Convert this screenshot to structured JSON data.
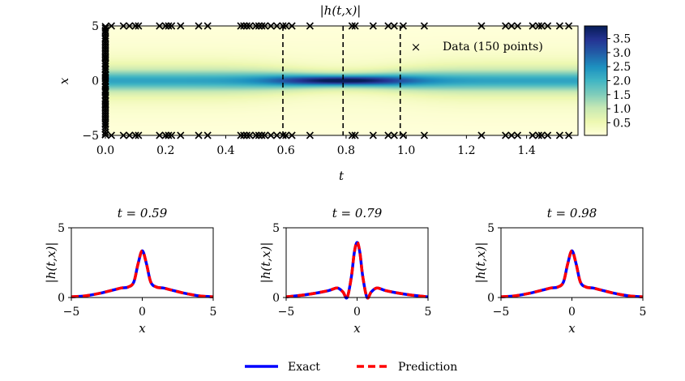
{
  "chart_data": [
    {
      "type": "heatmap",
      "title": "|h(t,x)|",
      "xlabel": "t",
      "ylabel": "x",
      "xlim": [
        0,
        1.5708
      ],
      "ylim": [
        -5,
        5
      ],
      "xticks": [
        "0.0",
        "0.2",
        "0.4",
        "0.6",
        "0.8",
        "1.0",
        "1.2",
        "1.4"
      ],
      "yticks": [
        "−5",
        "0",
        "5"
      ],
      "colormap": "YlGnBu",
      "colorbar": {
        "range": [
          0.05,
          3.95
        ],
        "ticks": [
          "0.5",
          "1.0",
          "1.5",
          "2.0",
          "2.5",
          "3.0",
          "3.5"
        ]
      },
      "vertical_lines_t": [
        0.59,
        0.79,
        0.98
      ],
      "legend": {
        "label": "Data (150 points)",
        "placement": "upper-right",
        "marker": "x"
      },
      "data_points": {
        "boundary_t": [
          0.02,
          0.06,
          0.08,
          0.1,
          0.11,
          0.18,
          0.2,
          0.21,
          0.22,
          0.25,
          0.31,
          0.34,
          0.45,
          0.46,
          0.47,
          0.48,
          0.5,
          0.51,
          0.52,
          0.53,
          0.55,
          0.57,
          0.59,
          0.6,
          0.62,
          0.68,
          0.82,
          0.83,
          0.89,
          0.94,
          0.96,
          0.99,
          1.06,
          1.25,
          1.33,
          1.35,
          1.37,
          1.42,
          1.44,
          1.45,
          1.47,
          1.51,
          1.54
        ],
        "initial_x": [
          -4.9,
          -4.7,
          -4.4,
          -4.2,
          -4.0,
          -3.7,
          -3.5,
          -3.3,
          -3.1,
          -2.9,
          -2.7,
          -2.5,
          -2.3,
          -2.1,
          -1.9,
          -1.8,
          -1.6,
          -1.4,
          -1.3,
          -1.1,
          -0.9,
          -0.8,
          -0.6,
          -0.5,
          -0.3,
          -0.1,
          0.0,
          0.2,
          0.3,
          0.5,
          0.6,
          0.8,
          1.0,
          1.1,
          1.3,
          1.5,
          1.6,
          1.8,
          2.0,
          2.2,
          2.4,
          2.6,
          2.8,
          3.0,
          3.2,
          3.4,
          3.6,
          3.9,
          4.1,
          4.3,
          4.6,
          4.8,
          4.95,
          -4.95,
          4.5,
          -3.9,
          3.8,
          -2.2,
          2.1,
          -1.0
        ]
      }
    },
    {
      "type": "line",
      "title": "t = 0.59",
      "xlabel": "x",
      "ylabel": "|h(t,x)|",
      "xlim": [
        -5,
        5
      ],
      "ylim": [
        0,
        5
      ],
      "xticks": [
        "−5",
        "0",
        "5"
      ],
      "yticks": [
        "0",
        "5"
      ],
      "x": [
        -5,
        -4,
        -3,
        -2,
        -1.5,
        -1,
        -0.6,
        -0.3,
        0,
        0.3,
        0.6,
        1,
        1.5,
        2,
        3,
        4,
        5
      ],
      "series": [
        {
          "name": "Exact",
          "color": "#0000ff",
          "values": [
            0.05,
            0.12,
            0.3,
            0.55,
            0.68,
            0.75,
            1.1,
            2.4,
            3.35,
            2.4,
            1.1,
            0.75,
            0.68,
            0.55,
            0.3,
            0.12,
            0.05
          ]
        },
        {
          "name": "Prediction",
          "color": "#ff0000",
          "values": [
            0.05,
            0.12,
            0.3,
            0.55,
            0.68,
            0.75,
            1.1,
            2.4,
            3.35,
            2.4,
            1.1,
            0.75,
            0.68,
            0.55,
            0.3,
            0.12,
            0.05
          ]
        }
      ]
    },
    {
      "type": "line",
      "title": "t = 0.79",
      "xlabel": "x",
      "ylabel": "|h(t,x)|",
      "xlim": [
        -5,
        5
      ],
      "ylim": [
        0,
        5
      ],
      "xticks": [
        "−5",
        "0",
        "5"
      ],
      "yticks": [
        "0",
        "5"
      ],
      "x": [
        -5,
        -4,
        -3,
        -2,
        -1.4,
        -1,
        -0.7,
        -0.4,
        -0.2,
        0,
        0.2,
        0.4,
        0.7,
        1,
        1.4,
        2,
        3,
        4,
        5
      ],
      "series": [
        {
          "name": "Exact",
          "color": "#0000ff",
          "values": [
            0.05,
            0.15,
            0.3,
            0.5,
            0.68,
            0.4,
            0.0,
            1.5,
            3.2,
            3.95,
            3.2,
            1.5,
            0.0,
            0.4,
            0.68,
            0.5,
            0.3,
            0.15,
            0.05
          ]
        },
        {
          "name": "Prediction",
          "color": "#ff0000",
          "values": [
            0.05,
            0.15,
            0.3,
            0.5,
            0.68,
            0.4,
            0.0,
            1.5,
            3.2,
            4.0,
            3.2,
            1.5,
            0.0,
            0.4,
            0.68,
            0.5,
            0.3,
            0.15,
            0.05
          ]
        }
      ]
    },
    {
      "type": "line",
      "title": "t = 0.98",
      "xlabel": "x",
      "ylabel": "|h(t,x)|",
      "xlim": [
        -5,
        5
      ],
      "ylim": [
        0,
        5
      ],
      "xticks": [
        "−5",
        "0",
        "5"
      ],
      "yticks": [
        "0",
        "5"
      ],
      "x": [
        -5,
        -4,
        -3,
        -2,
        -1.5,
        -1,
        -0.6,
        -0.3,
        0,
        0.3,
        0.6,
        1,
        1.5,
        2,
        3,
        4,
        5
      ],
      "series": [
        {
          "name": "Exact",
          "color": "#0000ff",
          "values": [
            0.05,
            0.12,
            0.3,
            0.55,
            0.68,
            0.75,
            1.1,
            2.4,
            3.35,
            2.4,
            1.1,
            0.75,
            0.68,
            0.55,
            0.3,
            0.12,
            0.05
          ]
        },
        {
          "name": "Prediction",
          "color": "#ff0000",
          "values": [
            0.05,
            0.12,
            0.3,
            0.55,
            0.68,
            0.75,
            1.1,
            2.4,
            3.35,
            2.4,
            1.1,
            0.75,
            0.68,
            0.55,
            0.3,
            0.12,
            0.05
          ]
        }
      ]
    }
  ],
  "legend": {
    "exact": "Exact",
    "prediction": "Prediction"
  }
}
